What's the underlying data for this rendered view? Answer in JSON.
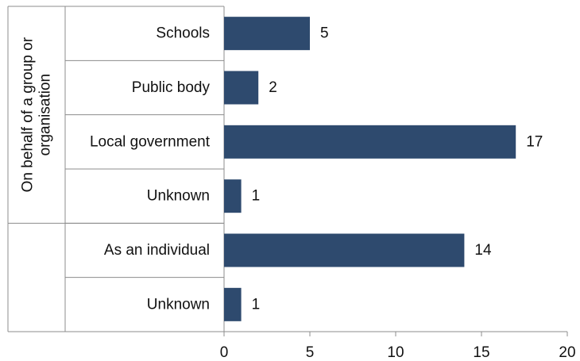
{
  "chart_data": {
    "type": "bar",
    "orientation": "horizontal",
    "categories": [
      "Schools",
      "Public body",
      "Local government",
      "Unknown",
      "As an individual",
      "Unknown"
    ],
    "values": [
      5,
      2,
      17,
      1,
      14,
      1
    ],
    "groups": [
      {
        "label_lines": [
          "On behalf of a group or",
          "organisation"
        ],
        "categories": [
          0,
          1,
          2,
          3
        ]
      },
      {
        "label_lines": [],
        "categories": [
          4,
          5
        ]
      }
    ],
    "xlim": [
      0,
      20
    ],
    "xticks": [
      0,
      5,
      10,
      15,
      20
    ],
    "grid": false,
    "bar_color": "#2e4a6e",
    "axis_color": "#8c8c8c"
  }
}
